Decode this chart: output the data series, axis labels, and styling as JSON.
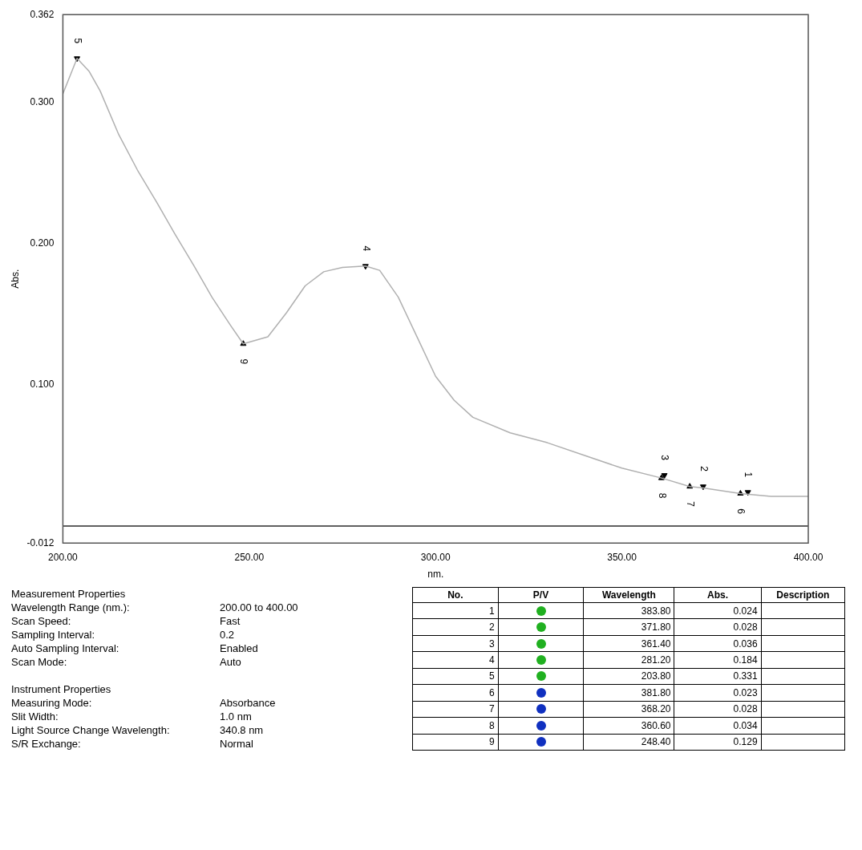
{
  "chart_data": {
    "type": "line",
    "xlabel": "nm.",
    "ylabel": "Abs.",
    "xlim": [
      200,
      400
    ],
    "ylim": [
      -0.012,
      0.362
    ],
    "xticks": [
      {
        "value": 200,
        "label": "200.00"
      },
      {
        "value": 250,
        "label": "250.00"
      },
      {
        "value": 300,
        "label": "300.00"
      },
      {
        "value": 350,
        "label": "350.00"
      },
      {
        "value": 400,
        "label": "400.00"
      }
    ],
    "yticks": [
      {
        "value": -0.012,
        "label": "-0.012"
      },
      {
        "value": 0.1,
        "label": "0.100"
      },
      {
        "value": 0.2,
        "label": "0.200"
      },
      {
        "value": 0.3,
        "label": "0.300"
      },
      {
        "value": 0.362,
        "label": "0.362"
      }
    ],
    "grid": false,
    "legend": false,
    "ref_lines": [
      {
        "axis": "y",
        "value": 0,
        "label": null,
        "color": "#606060"
      }
    ],
    "series": [
      {
        "type": "line",
        "color": "#b0b0b0",
        "marker": "none",
        "x": [
          200,
          203.8,
          207,
          210,
          215,
          220,
          225,
          230,
          235,
          240,
          245,
          248.4,
          255,
          260,
          265,
          270,
          275,
          281.2,
          285,
          290,
          295,
          300,
          305,
          310,
          320,
          330,
          340,
          350,
          360.6,
          368.2,
          371.8,
          381.8,
          390,
          400
        ],
        "values": [
          0.306,
          0.331,
          0.322,
          0.308,
          0.277,
          0.252,
          0.23,
          0.207,
          0.185,
          0.162,
          0.142,
          0.129,
          0.134,
          0.151,
          0.17,
          0.18,
          0.183,
          0.184,
          0.181,
          0.162,
          0.134,
          0.106,
          0.089,
          0.077,
          0.066,
          0.059,
          0.05,
          0.041,
          0.034,
          0.028,
          0.027,
          0.023,
          0.021,
          0.021
        ]
      },
      {
        "type": "scatter",
        "color": "#000000",
        "marker": "triangle",
        "x": [
          383.8,
          371.8,
          361.4,
          281.2,
          203.8
        ],
        "values": [
          0.024,
          0.028,
          0.036,
          0.184,
          0.331
        ]
      },
      {
        "type": "scatter",
        "color": "#000000",
        "marker": "triangle",
        "x": [
          381.8,
          368.2,
          360.6,
          248.4
        ],
        "values": [
          0.023,
          0.028,
          0.034,
          0.129
        ]
      }
    ],
    "annotations": [
      {
        "text": "1",
        "x": 383.8,
        "y": 0.024
      },
      {
        "text": "2",
        "x": 371.8,
        "y": 0.028
      },
      {
        "text": "3",
        "x": 361.4,
        "y": 0.036
      },
      {
        "text": "4",
        "x": 281.2,
        "y": 0.184
      },
      {
        "text": "5",
        "x": 203.8,
        "y": 0.331
      },
      {
        "text": "6",
        "x": 381.8,
        "y": 0.023
      },
      {
        "text": "7",
        "x": 368.2,
        "y": 0.028
      },
      {
        "text": "8",
        "x": 360.6,
        "y": 0.034
      },
      {
        "text": "9",
        "x": 248.4,
        "y": 0.129
      },
      "No.\tP/V\tWavelength\tAbs.\tDescription",
      "1\t383.80\t0.024",
      "2\t371.80\t0.028",
      "3\t361.40\t0.036",
      "4\t281.20\t0.184",
      "5\t203.80\t0.331",
      "6\t381.80\t0.023",
      "7\t368.20\t0.028",
      "8\t360.60\t0.034",
      "9\t248.40\t0.129",
      "Measurement Properties",
      "Wavelength Range (nm.):\t200.00 to 400.00",
      "Scan Speed:\tFast",
      "Sampling Interval:\t0.2",
      "Auto Sampling Interval:\tEnabled",
      "Scan Mode:\tAuto",
      "Instrument Properties",
      "Measuring Mode:\tAbsorbance",
      "Slit Width:\t1.0 nm",
      "Light Source Change Wavelength:\t340.8 nm",
      "S/R Exchange:\tNormal"
    ]
  }
}
